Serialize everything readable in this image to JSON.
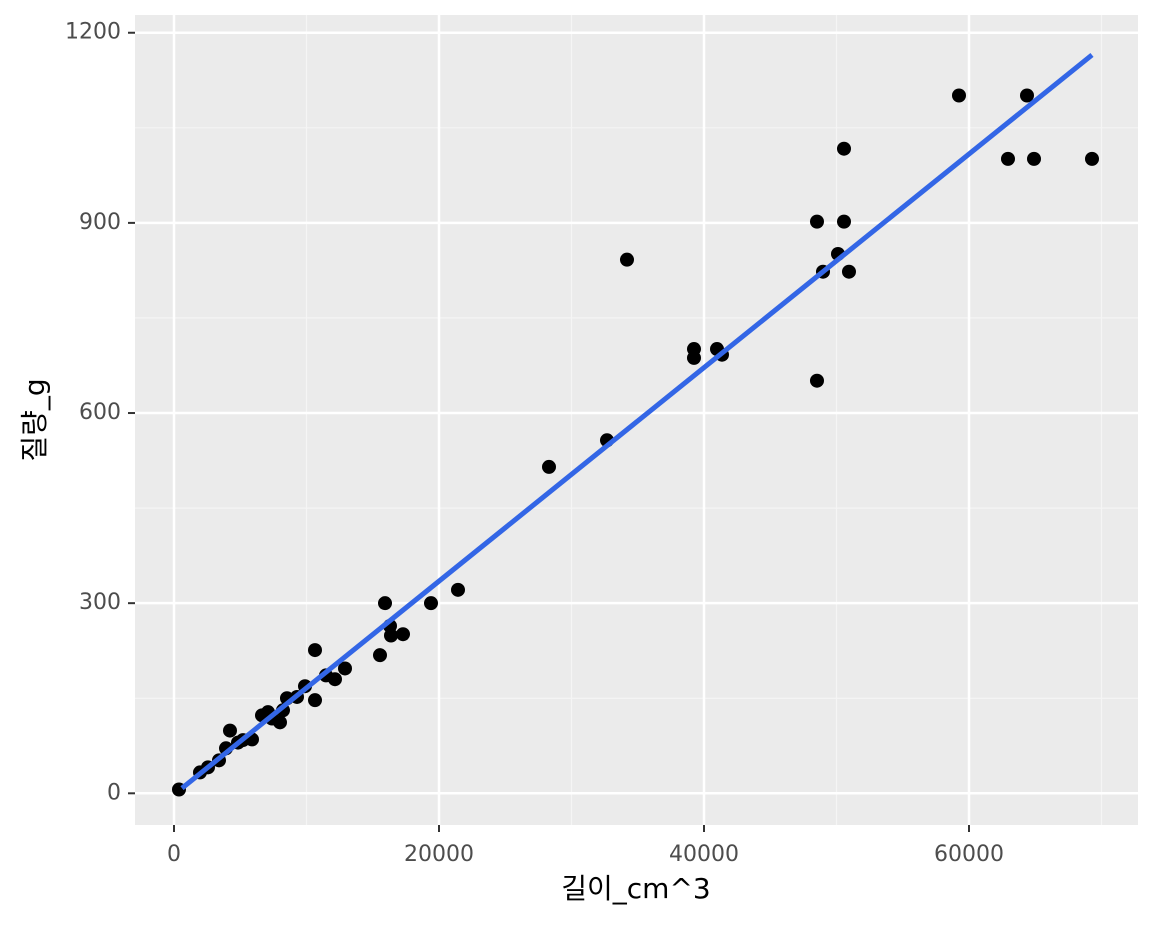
{
  "chart_data": {
    "type": "scatter",
    "x_label": "길이_cm^3",
    "y_label": "질량_g",
    "x": [
      377,
      1962,
      2566,
      3396,
      3925,
      4226,
      4830,
      5208,
      5887,
      6642,
      7094,
      7396,
      8000,
      8226,
      8528,
      9283,
      9887,
      10642,
      10642,
      11472,
      12151,
      12906,
      15547,
      15925,
      16302,
      16377,
      17283,
      19396,
      21434,
      28302,
      32679,
      34189,
      39245,
      39245,
      40981,
      41358,
      48528,
      48528,
      48981,
      50113,
      50566,
      50566,
      50943,
      59245,
      62943,
      64377,
      64906,
      69283
    ],
    "values": [
      6,
      33,
      41,
      52,
      71,
      99,
      80,
      84,
      85,
      123,
      128,
      118,
      112,
      131,
      150,
      152,
      169,
      226,
      147,
      186,
      180,
      197,
      218,
      300,
      264,
      249,
      251,
      300,
      321,
      515,
      557,
      842,
      701,
      687,
      701,
      692,
      651,
      902,
      823,
      851,
      902,
      1017,
      823,
      1101,
      1001,
      1101,
      1001,
      1001
    ],
    "color": "#000000",
    "fit": {
      "color": "#3366e6",
      "x": [
        604,
        69283
      ],
      "y": [
        8,
        1165
      ]
    },
    "xlim": [
      -2943,
      72755
    ],
    "ylim": [
      -50,
      1228
    ],
    "xticks": [
      0,
      20000,
      40000,
      60000
    ],
    "yticks": [
      0,
      300,
      600,
      900,
      1200
    ],
    "x_minor_grid": [
      10000,
      30000,
      50000,
      70000
    ],
    "y_minor_grid": [
      150,
      450,
      750,
      1050
    ],
    "grid": true
  }
}
